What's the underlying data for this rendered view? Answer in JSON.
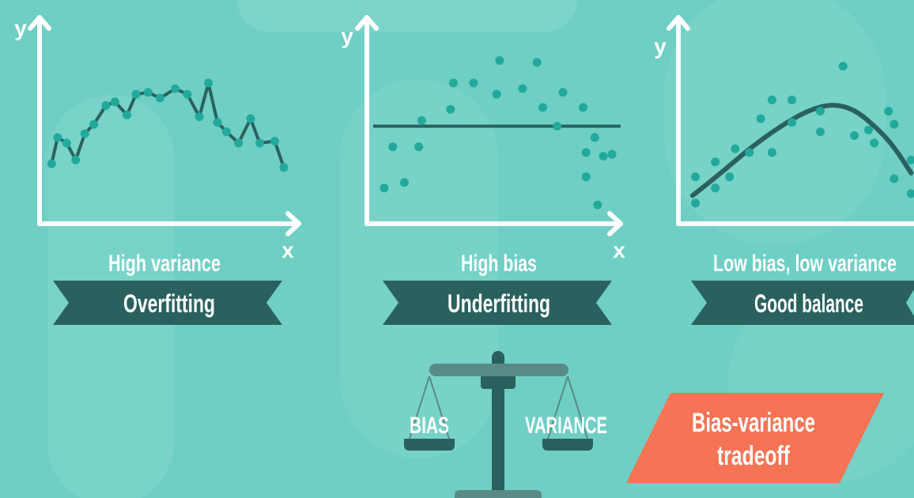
{
  "colors": {
    "background": "#6fcfc4",
    "background_shape": "#7dd4ca",
    "axis": "#ffffff",
    "dark": "#2a615e",
    "dot": "#21a99c",
    "scale_pan": "#2a615e",
    "scale_beam": "#5a8a86",
    "tag": "#f47455",
    "text": "#ffffff"
  },
  "panels": [
    {
      "y_label": "y",
      "x_label": "x",
      "caption": "High variance",
      "banner": "Overfitting",
      "chart_data": {
        "type": "scatter",
        "fit": "connect-the-dots",
        "points": [
          [
            0.4,
            3.2
          ],
          [
            0.6,
            4.6
          ],
          [
            0.9,
            4.3
          ],
          [
            1.2,
            3.4
          ],
          [
            1.5,
            4.8
          ],
          [
            1.8,
            5.3
          ],
          [
            2.2,
            6.3
          ],
          [
            2.5,
            6.5
          ],
          [
            2.9,
            5.8
          ],
          [
            3.2,
            6.9
          ],
          [
            3.6,
            7.0
          ],
          [
            4.0,
            6.7
          ],
          [
            4.5,
            7.2
          ],
          [
            4.9,
            6.9
          ],
          [
            5.3,
            5.7
          ],
          [
            5.6,
            7.5
          ],
          [
            5.9,
            5.4
          ],
          [
            6.2,
            4.9
          ],
          [
            6.6,
            4.3
          ],
          [
            7.0,
            5.6
          ],
          [
            7.3,
            4.3
          ],
          [
            7.8,
            4.4
          ],
          [
            8.1,
            3.0
          ]
        ],
        "xlim": [
          0,
          8.6
        ],
        "ylim": [
          0,
          11
        ]
      }
    },
    {
      "y_label": "y",
      "x_label": "x",
      "caption": "High bias",
      "banner": "Underfitting",
      "chart_data": {
        "type": "scatter",
        "fit": "horizontal-line",
        "fit_y": 5.2,
        "points": [
          [
            0.6,
            1.9
          ],
          [
            0.9,
            4.1
          ],
          [
            1.3,
            2.2
          ],
          [
            1.8,
            4.1
          ],
          [
            1.9,
            5.5
          ],
          [
            2.9,
            6.1
          ],
          [
            3.0,
            7.5
          ],
          [
            3.7,
            7.5
          ],
          [
            4.5,
            6.9
          ],
          [
            4.6,
            8.7
          ],
          [
            5.4,
            7.2
          ],
          [
            5.9,
            8.6
          ],
          [
            6.1,
            6.2
          ],
          [
            6.6,
            5.2
          ],
          [
            6.8,
            7.0
          ],
          [
            7.5,
            6.2
          ],
          [
            7.6,
            3.8
          ],
          [
            7.6,
            2.5
          ],
          [
            7.9,
            4.6
          ],
          [
            8.2,
            3.6
          ],
          [
            8.5,
            3.7
          ],
          [
            8.0,
            1.0
          ]
        ],
        "xlim": [
          0,
          8.8
        ],
        "ylim": [
          0,
          11
        ]
      }
    },
    {
      "y_label": "y",
      "x_label": "",
      "caption": "Low bias, low variance",
      "banner": "Good balance",
      "chart_data": {
        "type": "scatter",
        "fit": "smooth-curve",
        "points": [
          [
            0.6,
            1.1
          ],
          [
            0.6,
            2.5
          ],
          [
            1.3,
            1.9
          ],
          [
            1.3,
            3.3
          ],
          [
            1.8,
            2.5
          ],
          [
            2.0,
            4.0
          ],
          [
            2.5,
            3.8
          ],
          [
            2.9,
            5.6
          ],
          [
            3.3,
            3.8
          ],
          [
            3.3,
            6.6
          ],
          [
            4.0,
            6.6
          ],
          [
            4.0,
            5.4
          ],
          [
            5.0,
            4.9
          ],
          [
            5.0,
            6.0
          ],
          [
            5.8,
            8.4
          ],
          [
            6.2,
            4.7
          ],
          [
            6.7,
            5.0
          ],
          [
            6.9,
            4.3
          ],
          [
            7.4,
            6.0
          ],
          [
            7.6,
            5.3
          ],
          [
            7.6,
            2.4
          ],
          [
            8.2,
            3.4
          ],
          [
            8.2,
            1.6
          ]
        ],
        "curve": [
          [
            0.5,
            1.5
          ],
          [
            1.5,
            2.7
          ],
          [
            2.5,
            4.0
          ],
          [
            3.5,
            5.1
          ],
          [
            4.5,
            6.0
          ],
          [
            5.4,
            6.4
          ],
          [
            6.2,
            6.1
          ],
          [
            7.0,
            5.1
          ],
          [
            7.6,
            4.1
          ],
          [
            8.2,
            2.7
          ]
        ],
        "xlim": [
          0,
          8.3
        ],
        "ylim": [
          0,
          11
        ]
      }
    }
  ],
  "scale": {
    "left_label": "BIAS",
    "right_label": "VARIANCE"
  },
  "tag": {
    "line1": "Bias-variance",
    "line2": "tradeoff"
  }
}
